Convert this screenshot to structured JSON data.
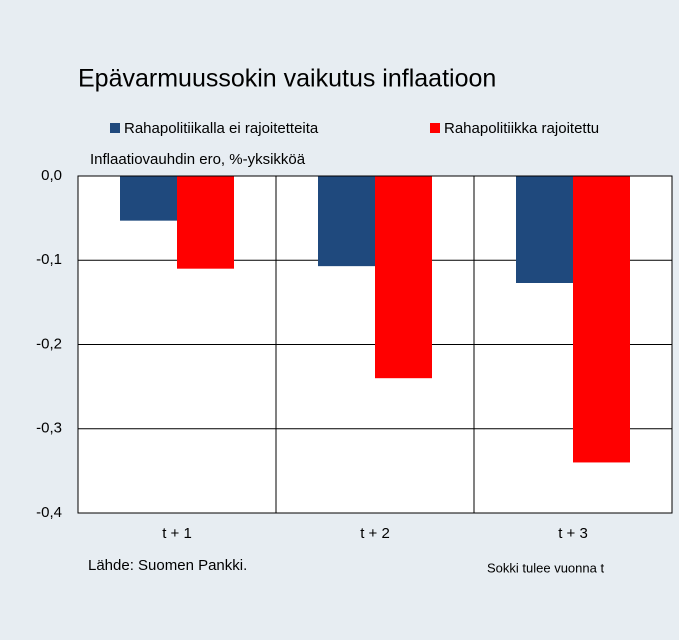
{
  "chart_data": {
    "type": "bar",
    "title": "Epävarmuussokin vaikutus inflaatioon",
    "y_label": "Inflaatiovauhdin ero, %-yksikköä",
    "source": "Lähde: Suomen Pankki.",
    "note": "Sokki tulee vuonna t",
    "categories": [
      "t + 1",
      "t + 2",
      "t + 3"
    ],
    "series": [
      {
        "name": "Rahapolitiikalla ei rajoitetteita",
        "color": "#1f497d",
        "values": [
          -0.053,
          -0.107,
          -0.127
        ]
      },
      {
        "name": "Rahapolitiikka rajoitettu",
        "color": "#ff0000",
        "values": [
          -0.11,
          -0.24,
          -0.34
        ]
      }
    ],
    "ylim": [
      -0.4,
      0
    ],
    "yticks": [
      {
        "value": 0,
        "label": "0,0"
      },
      {
        "value": -0.1,
        "label": "-0,1"
      },
      {
        "value": -0.2,
        "label": "-0,2"
      },
      {
        "value": -0.3,
        "label": "-0,3"
      },
      {
        "value": -0.4,
        "label": "-0,4"
      }
    ],
    "grid": true
  }
}
